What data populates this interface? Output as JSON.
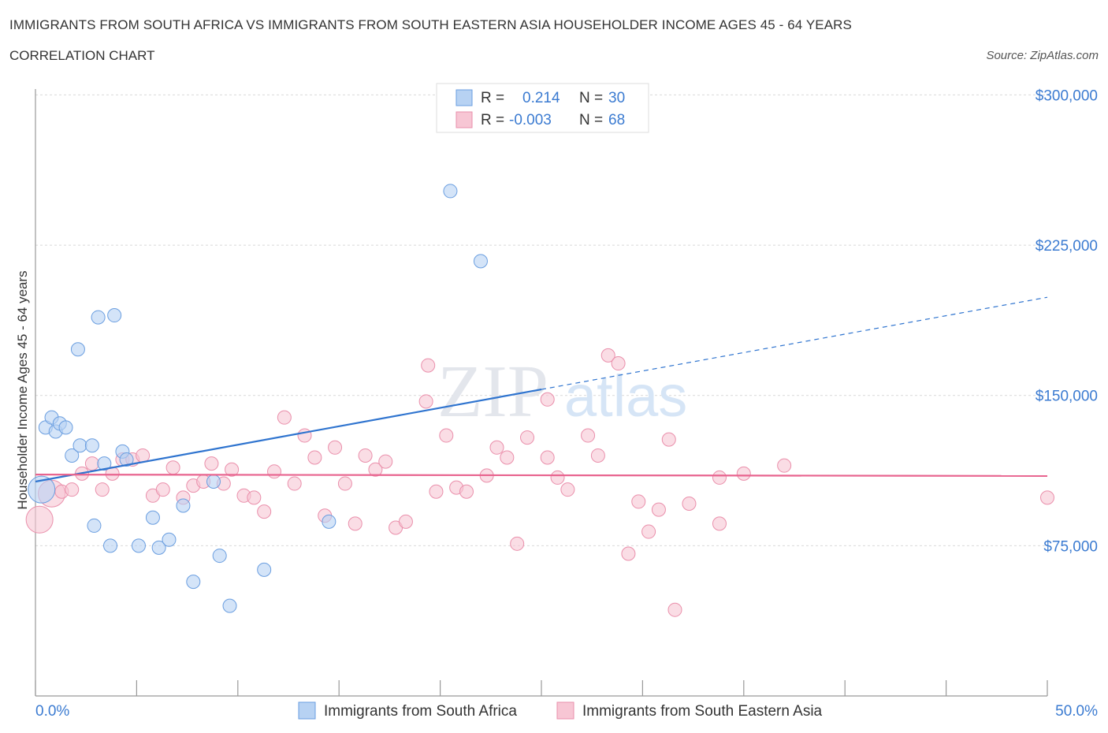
{
  "header": {
    "title": "IMMIGRANTS FROM SOUTH AFRICA VS IMMIGRANTS FROM SOUTH EASTERN ASIA HOUSEHOLDER INCOME AGES 45 - 64 YEARS",
    "subtitle": "CORRELATION CHART",
    "source": "Source: ZipAtlas.com"
  },
  "watermark": {
    "zip": "ZIP",
    "atlas": "atlas"
  },
  "legend_top": {
    "rows": [
      {
        "r_label": "R =",
        "r_value": "0.214",
        "n_label": "N =",
        "n_value": "30"
      },
      {
        "r_label": "R =",
        "r_value": "-0.003",
        "n_label": "N =",
        "n_value": "68"
      }
    ]
  },
  "chart_data": {
    "type": "scatter",
    "ylabel": "Householder Income Ages 45 - 64 years",
    "xlim": [
      0,
      50
    ],
    "ylim": [
      0,
      310000
    ],
    "x_tick_labels": [
      {
        "x": 0,
        "label": "0.0%"
      },
      {
        "x": 50,
        "label": "50.0%"
      }
    ],
    "y_ticks": [
      {
        "y": 75000,
        "label": "$75,000"
      },
      {
        "y": 150000,
        "label": "$150,000"
      },
      {
        "y": 225000,
        "label": "$225,000"
      },
      {
        "y": 300000,
        "label": "$300,000"
      }
    ],
    "colors": {
      "series1_fill": "#b7d2f3",
      "series1_stroke": "#6a9ee0",
      "series1_line": "#2f74cf",
      "series2_fill": "#f7c6d4",
      "series2_stroke": "#ea8fab",
      "series2_line": "#e8648f",
      "tick_label": "#3b7bd1"
    },
    "series": [
      {
        "name": "Immigrants from South Africa",
        "trend": {
          "x0": 0,
          "y0": 107000,
          "x1": 25,
          "y1": 153000,
          "dashed_x1": 50,
          "dashed_y1": 199000
        },
        "points": [
          {
            "x": 0.3,
            "y": 103000,
            "s": "large"
          },
          {
            "x": 0.5,
            "y": 134000
          },
          {
            "x": 0.8,
            "y": 139000
          },
          {
            "x": 1.0,
            "y": 132000
          },
          {
            "x": 1.2,
            "y": 136000
          },
          {
            "x": 1.5,
            "y": 134000
          },
          {
            "x": 1.8,
            "y": 120000
          },
          {
            "x": 2.1,
            "y": 173000
          },
          {
            "x": 2.2,
            "y": 125000
          },
          {
            "x": 2.8,
            "y": 125000
          },
          {
            "x": 2.9,
            "y": 85000
          },
          {
            "x": 3.1,
            "y": 189000
          },
          {
            "x": 3.4,
            "y": 116000
          },
          {
            "x": 3.7,
            "y": 75000
          },
          {
            "x": 3.9,
            "y": 190000
          },
          {
            "x": 4.3,
            "y": 122000
          },
          {
            "x": 4.5,
            "y": 118000
          },
          {
            "x": 5.1,
            "y": 75000
          },
          {
            "x": 5.8,
            "y": 89000
          },
          {
            "x": 6.1,
            "y": 74000
          },
          {
            "x": 6.6,
            "y": 78000
          },
          {
            "x": 7.3,
            "y": 95000
          },
          {
            "x": 7.8,
            "y": 57000
          },
          {
            "x": 8.8,
            "y": 107000
          },
          {
            "x": 9.1,
            "y": 70000
          },
          {
            "x": 9.6,
            "y": 45000
          },
          {
            "x": 11.3,
            "y": 63000
          },
          {
            "x": 14.5,
            "y": 87000
          },
          {
            "x": 20.5,
            "y": 252000
          },
          {
            "x": 22.0,
            "y": 217000
          }
        ]
      },
      {
        "name": "Immigrants from South Eastern Asia",
        "trend": {
          "x0": 0,
          "y0": 110500,
          "x1": 50,
          "y1": 109800
        },
        "points": [
          {
            "x": 0.2,
            "y": 88000,
            "s": "large"
          },
          {
            "x": 0.8,
            "y": 101000,
            "s": "large"
          },
          {
            "x": 1.3,
            "y": 102000
          },
          {
            "x": 1.8,
            "y": 103000
          },
          {
            "x": 2.3,
            "y": 111000
          },
          {
            "x": 2.8,
            "y": 116000
          },
          {
            "x": 3.3,
            "y": 103000
          },
          {
            "x": 3.8,
            "y": 111000
          },
          {
            "x": 4.3,
            "y": 118000
          },
          {
            "x": 4.8,
            "y": 118000
          },
          {
            "x": 5.3,
            "y": 120000
          },
          {
            "x": 5.8,
            "y": 100000
          },
          {
            "x": 6.3,
            "y": 103000
          },
          {
            "x": 6.8,
            "y": 114000
          },
          {
            "x": 7.3,
            "y": 99000
          },
          {
            "x": 7.8,
            "y": 105000
          },
          {
            "x": 8.3,
            "y": 107000
          },
          {
            "x": 8.7,
            "y": 116000
          },
          {
            "x": 9.3,
            "y": 106000
          },
          {
            "x": 9.7,
            "y": 113000
          },
          {
            "x": 10.3,
            "y": 100000
          },
          {
            "x": 10.8,
            "y": 99000
          },
          {
            "x": 11.3,
            "y": 92000
          },
          {
            "x": 11.8,
            "y": 112000
          },
          {
            "x": 12.3,
            "y": 139000
          },
          {
            "x": 12.8,
            "y": 106000
          },
          {
            "x": 13.3,
            "y": 130000
          },
          {
            "x": 13.8,
            "y": 119000
          },
          {
            "x": 14.3,
            "y": 90000
          },
          {
            "x": 14.8,
            "y": 124000
          },
          {
            "x": 15.3,
            "y": 106000
          },
          {
            "x": 15.8,
            "y": 86000
          },
          {
            "x": 16.3,
            "y": 120000
          },
          {
            "x": 16.8,
            "y": 113000
          },
          {
            "x": 17.3,
            "y": 117000
          },
          {
            "x": 17.8,
            "y": 84000
          },
          {
            "x": 18.3,
            "y": 87000
          },
          {
            "x": 19.3,
            "y": 147000
          },
          {
            "x": 19.4,
            "y": 165000
          },
          {
            "x": 19.8,
            "y": 102000
          },
          {
            "x": 20.3,
            "y": 130000
          },
          {
            "x": 20.8,
            "y": 104000
          },
          {
            "x": 21.3,
            "y": 102000
          },
          {
            "x": 22.3,
            "y": 110000
          },
          {
            "x": 22.8,
            "y": 124000
          },
          {
            "x": 23.3,
            "y": 119000
          },
          {
            "x": 23.8,
            "y": 76000
          },
          {
            "x": 24.3,
            "y": 129000
          },
          {
            "x": 25.3,
            "y": 148000
          },
          {
            "x": 25.3,
            "y": 119000
          },
          {
            "x": 25.8,
            "y": 109000
          },
          {
            "x": 26.3,
            "y": 103000
          },
          {
            "x": 27.3,
            "y": 130000
          },
          {
            "x": 27.8,
            "y": 120000
          },
          {
            "x": 28.3,
            "y": 170000
          },
          {
            "x": 28.8,
            "y": 166000
          },
          {
            "x": 29.3,
            "y": 71000
          },
          {
            "x": 29.8,
            "y": 97000
          },
          {
            "x": 30.3,
            "y": 82000
          },
          {
            "x": 30.8,
            "y": 93000
          },
          {
            "x": 31.3,
            "y": 128000
          },
          {
            "x": 31.6,
            "y": 43000
          },
          {
            "x": 32.3,
            "y": 96000
          },
          {
            "x": 33.8,
            "y": 109000
          },
          {
            "x": 33.8,
            "y": 86000
          },
          {
            "x": 35.0,
            "y": 111000
          },
          {
            "x": 37.0,
            "y": 115000
          },
          {
            "x": 50.0,
            "y": 99000
          }
        ]
      }
    ]
  }
}
